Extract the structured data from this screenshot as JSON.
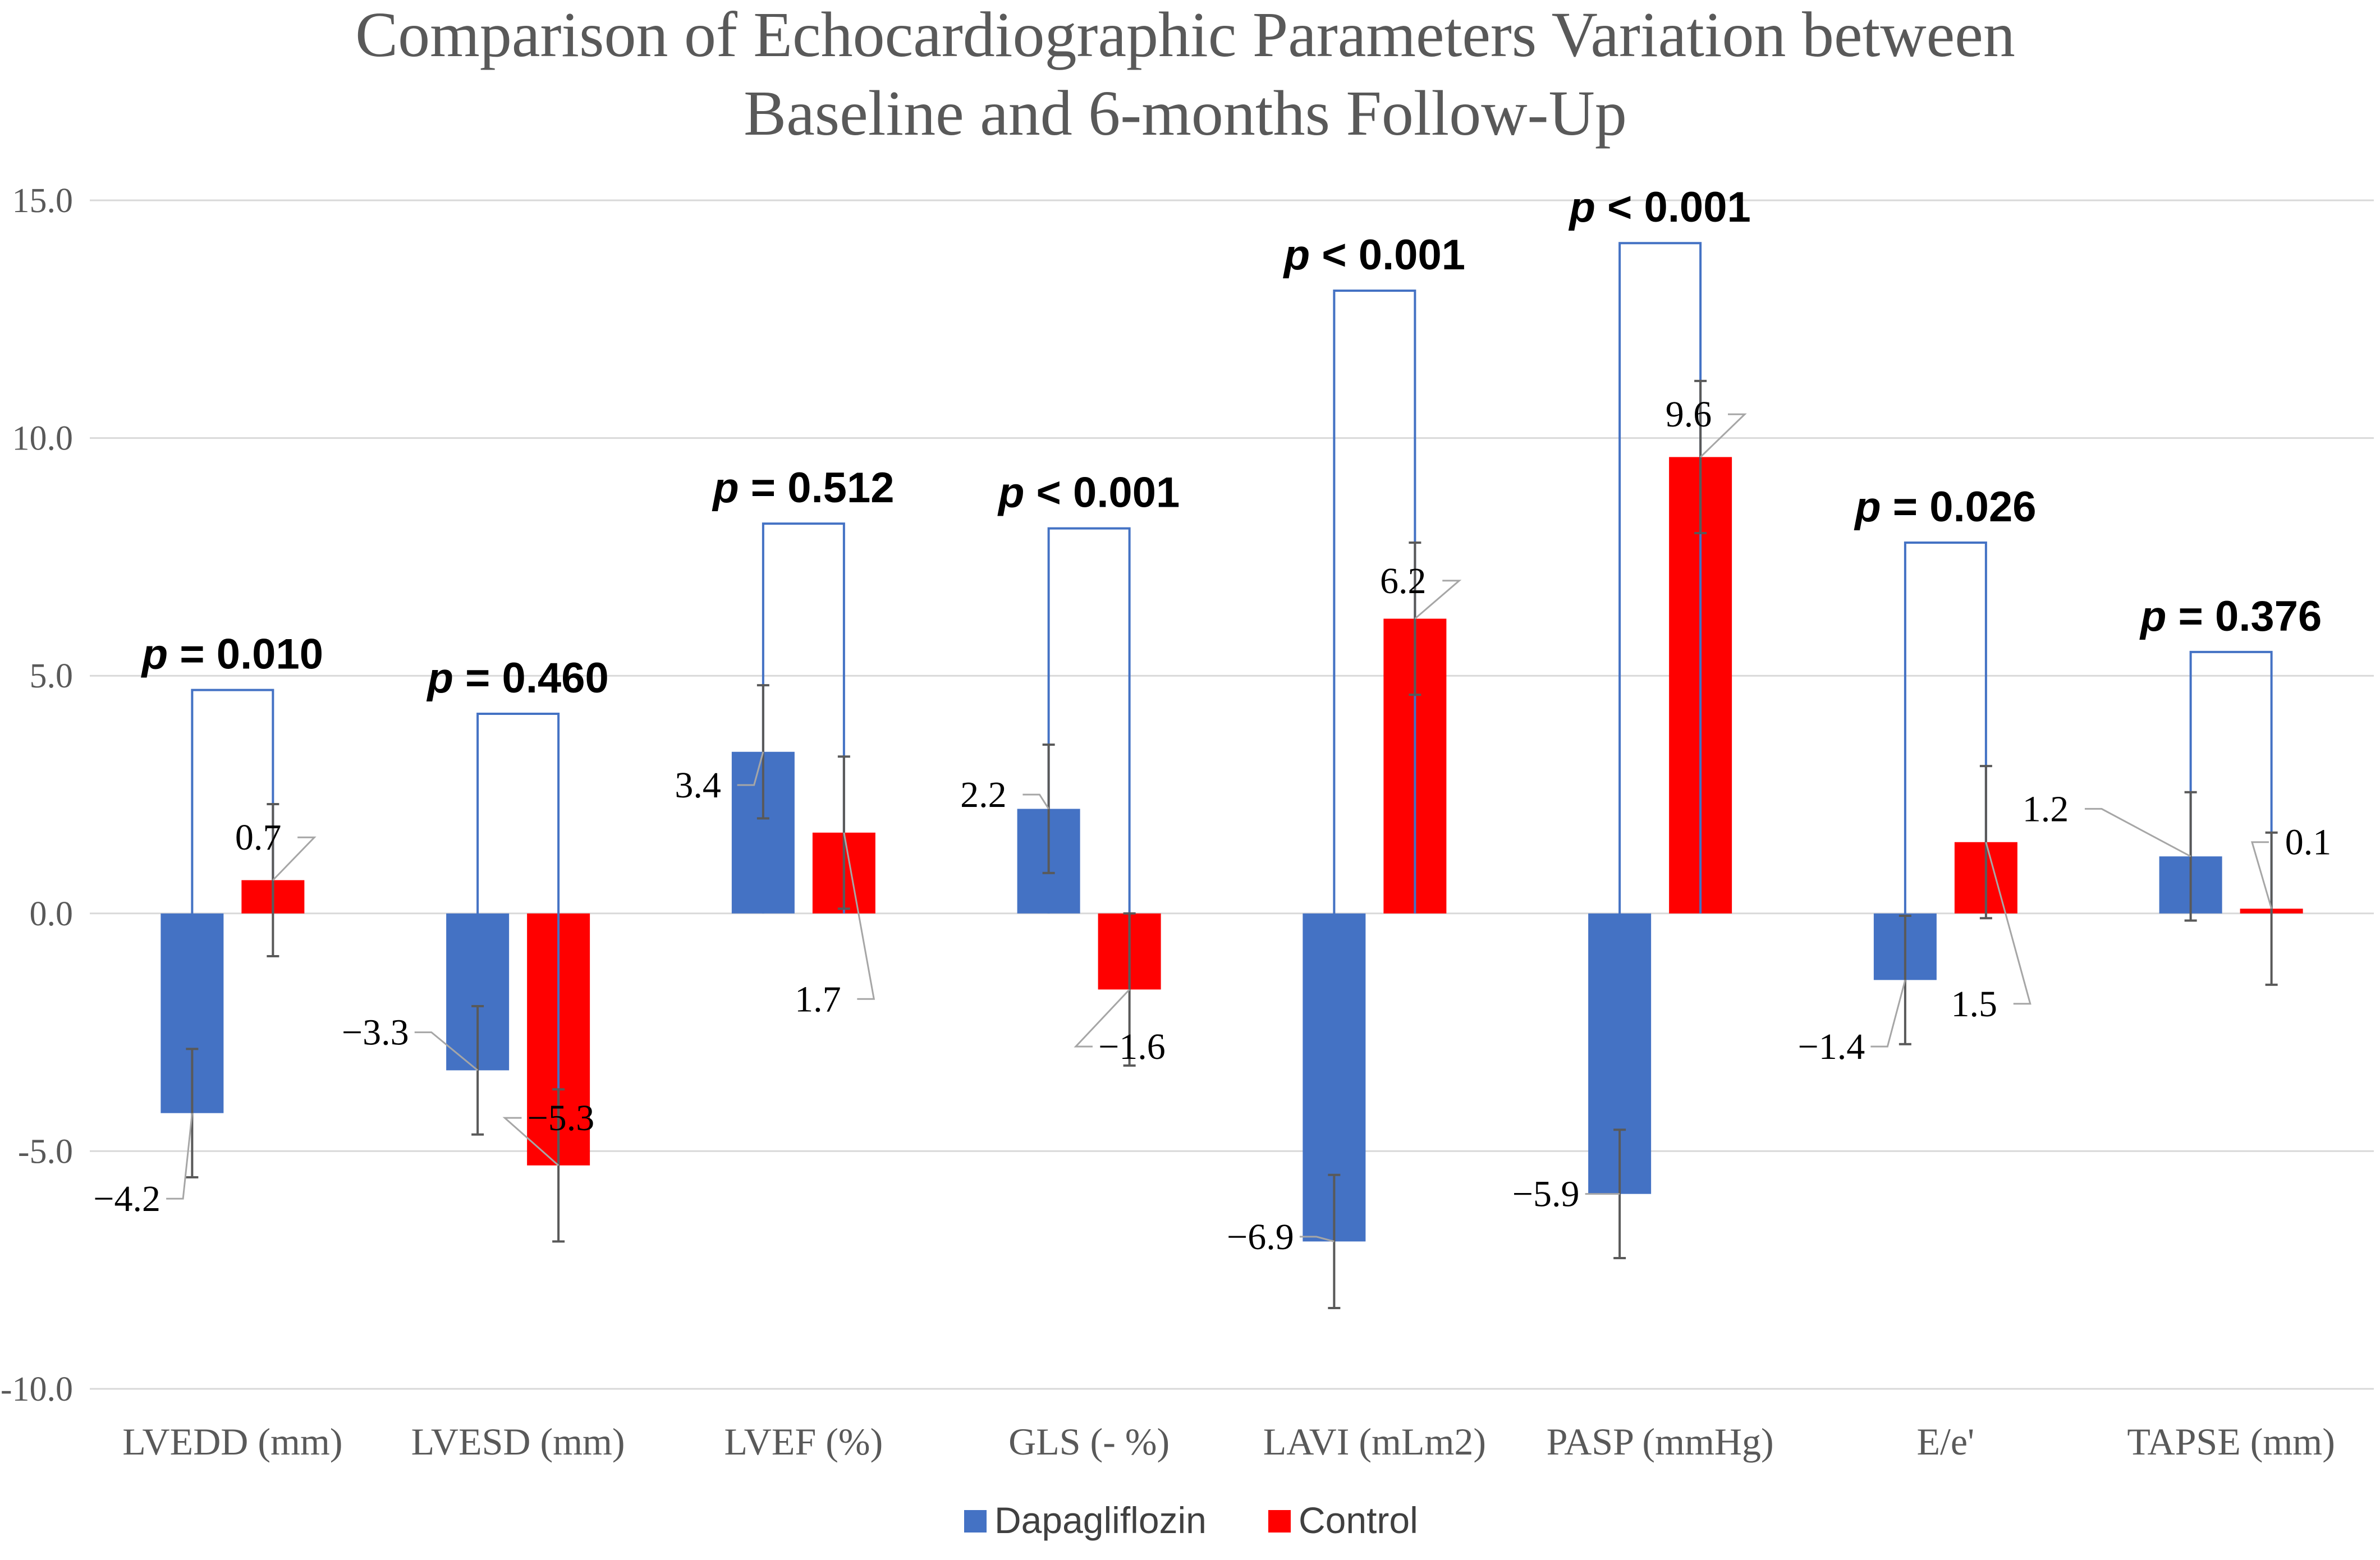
{
  "chart_data": {
    "type": "bar",
    "title_lines": [
      "Comparison of Echocardiographic Parameters Variation between",
      "Baseline and 6-months Follow-Up"
    ],
    "categories": [
      "LVEDD (mm)",
      "LVESD (mm)",
      "LVEF (%)",
      "GLS (- %)",
      "LAVI (mLm2)",
      "PASP (mmHg)",
      "E/e'",
      "TAPSE (mm)"
    ],
    "series": [
      {
        "name": "Dapagliflozin",
        "color": "#4472C4",
        "values": [
          -4.2,
          -3.3,
          3.4,
          2.2,
          -6.9,
          -5.9,
          -1.4,
          1.2
        ],
        "labels": [
          "−4.2",
          "−3.3",
          "3.4",
          "2.2",
          "−6.9",
          "−5.9",
          "−1.4",
          "1.2"
        ],
        "error": [
          1.35,
          1.35,
          1.4,
          1.35,
          1.4,
          1.35,
          1.35,
          1.35
        ]
      },
      {
        "name": "Control",
        "color": "#FF0000",
        "values": [
          0.7,
          -5.3,
          1.7,
          -1.6,
          6.2,
          9.6,
          1.5,
          0.1
        ],
        "labels": [
          "0.7",
          "−5.3",
          "1.7",
          "−1.6",
          "6.2",
          "9.6",
          "1.5",
          "0.1"
        ],
        "error": [
          1.6,
          1.6,
          1.6,
          1.6,
          1.6,
          1.6,
          1.6,
          1.6
        ]
      }
    ],
    "p_values": [
      "p = 0.010",
      "p = 0.460",
      "p = 0.512",
      "p < 0.001",
      "p < 0.001",
      "p < 0.001",
      "p = 0.026",
      "p = 0.376"
    ],
    "bracket_tops": [
      4.7,
      4.2,
      8.2,
      8.1,
      13.1,
      14.1,
      7.8,
      5.5
    ],
    "ylim": [
      -10,
      15
    ],
    "yticks": [
      15,
      10,
      5,
      0,
      -5,
      -10
    ],
    "ytick_labels": [
      "15.0",
      "10.0",
      "5.0",
      "0.0",
      "-5.0",
      "-10.0"
    ],
    "grid": true,
    "legend_position": "bottom",
    "xlabel": "",
    "ylabel": ""
  }
}
